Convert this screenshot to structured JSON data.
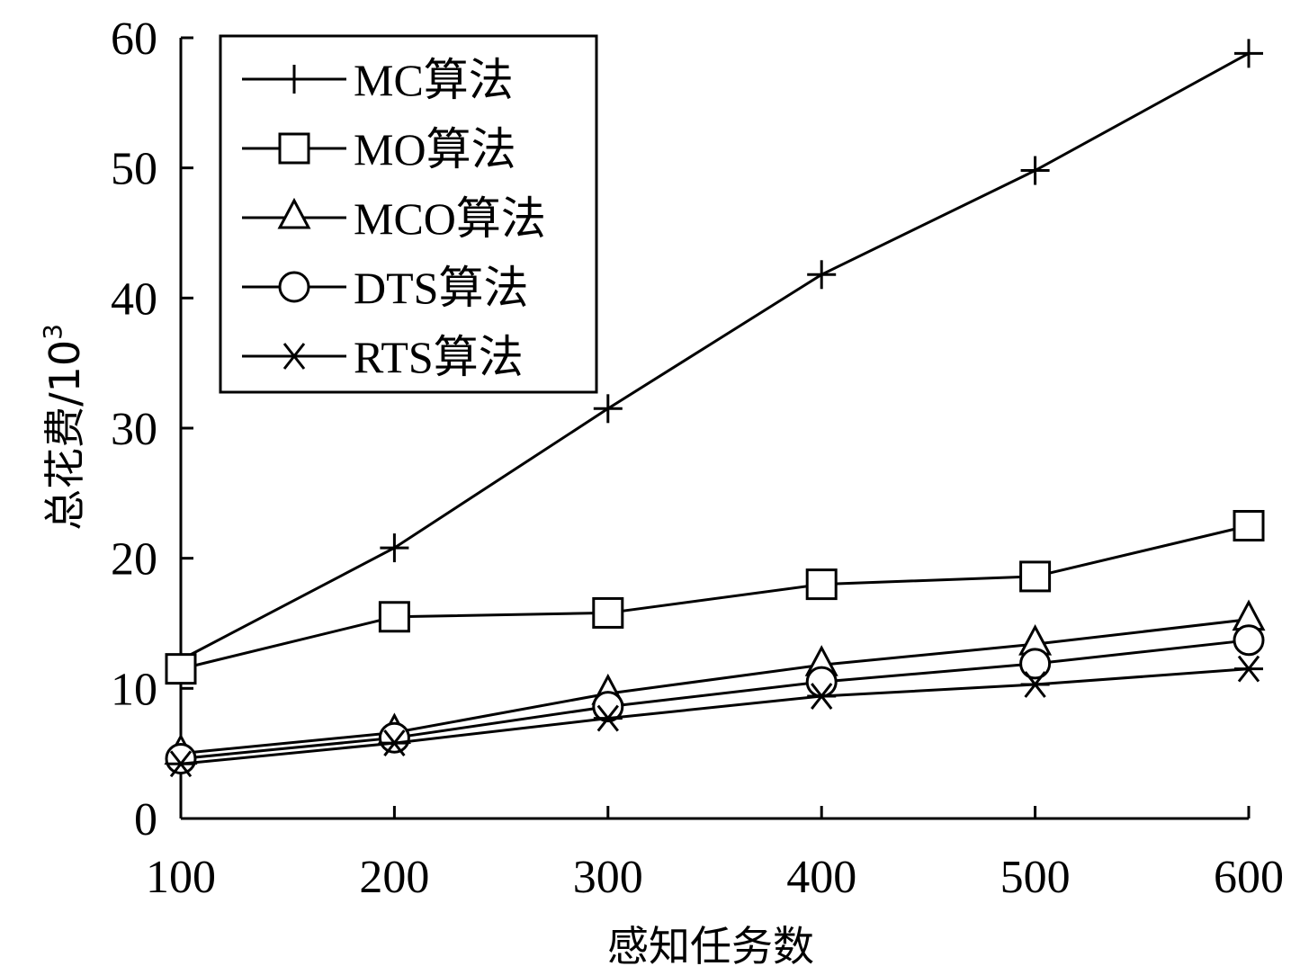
{
  "chart_data": {
    "type": "line",
    "title": "",
    "xlabel": "感知任务数",
    "ylabel_main": "总花费/10",
    "ylabel_sup": "3",
    "x": [
      100,
      200,
      300,
      400,
      500,
      600
    ],
    "xlim": [
      100,
      600
    ],
    "ylim": [
      0,
      60
    ],
    "xticks": [
      "100",
      "200",
      "300",
      "400",
      "500",
      "600"
    ],
    "yticks": [
      "0",
      "10",
      "20",
      "30",
      "40",
      "50",
      "60"
    ],
    "grid": false,
    "legend_position": "top-left",
    "series": [
      {
        "name": "MC算法",
        "marker": "plus",
        "values": [
          12.2,
          20.8,
          31.5,
          41.8,
          49.8,
          58.8
        ]
      },
      {
        "name": "MO算法",
        "marker": "square",
        "values": [
          11.5,
          15.5,
          15.8,
          18.0,
          18.6,
          22.5
        ]
      },
      {
        "name": "MCO算法",
        "marker": "triangle",
        "values": [
          5.0,
          6.6,
          9.6,
          11.8,
          13.4,
          15.3
        ]
      },
      {
        "name": "DTS算法",
        "marker": "circle",
        "values": [
          4.6,
          6.2,
          8.6,
          10.5,
          11.9,
          13.7
        ]
      },
      {
        "name": "RTS算法",
        "marker": "asterisk",
        "values": [
          4.2,
          5.8,
          7.7,
          9.4,
          10.3,
          11.5
        ]
      }
    ]
  }
}
